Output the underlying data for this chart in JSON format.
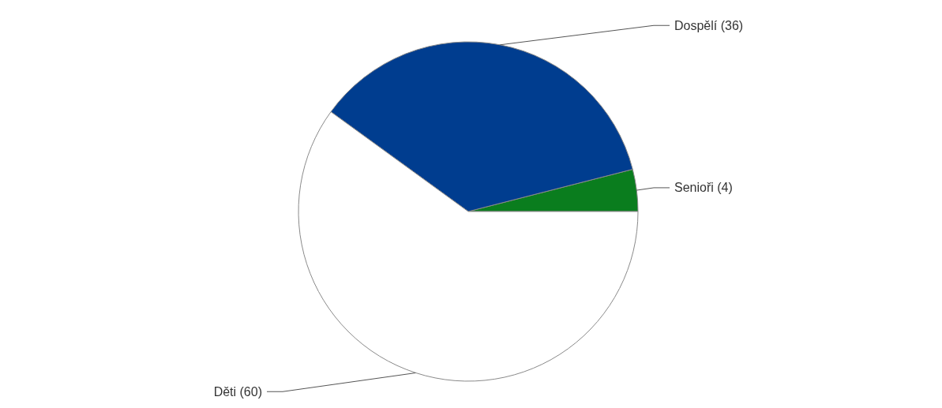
{
  "chart_data": {
    "type": "pie",
    "categories": [
      "Senioři",
      "Dospělí",
      "Děti"
    ],
    "values": [
      4,
      36,
      60
    ],
    "colors": [
      "#0a7d1e",
      "#003d8f",
      "#ffffff"
    ],
    "value_labels": [
      "(4)",
      "(36)",
      "(60)"
    ]
  }
}
